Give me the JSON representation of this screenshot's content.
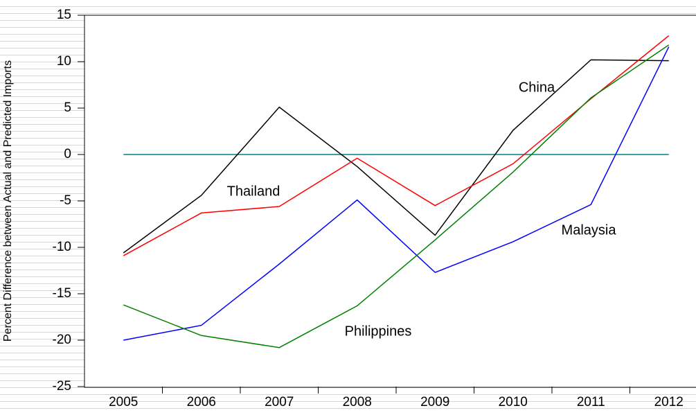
{
  "chart_data": {
    "type": "line",
    "y_label": "Percent Difference between Actual and Predicted Imports",
    "categories": [
      "2005",
      "2006",
      "2007",
      "2008",
      "2009",
      "2010",
      "2011",
      "2012"
    ],
    "series": [
      {
        "name": "China",
        "color": "#000000",
        "values": [
          -10.6,
          -4.4,
          5.1,
          -1.3,
          -8.7,
          2.6,
          10.2,
          10.1
        ]
      },
      {
        "name": "Thailand",
        "color": "#ff0000",
        "values": [
          -10.9,
          -6.3,
          -5.6,
          -0.4,
          -5.5,
          -1.0,
          6.0,
          12.8
        ]
      },
      {
        "name": "Malaysia",
        "color": "#0000ff",
        "values": [
          -20.0,
          -18.4,
          -11.8,
          -4.9,
          -12.7,
          -9.4,
          -5.4,
          11.6
        ]
      },
      {
        "name": "Philippines",
        "color": "#008000",
        "values": [
          -16.2,
          -19.5,
          -20.8,
          -16.3,
          -9.2,
          -1.9,
          6.1,
          11.8
        ]
      }
    ],
    "reference_line": {
      "value": 0,
      "color": "#008080"
    },
    "ylim": [
      -25,
      15
    ],
    "yticks": [
      -25,
      -20,
      -15,
      -10,
      -5,
      0,
      5,
      10,
      15
    ]
  }
}
